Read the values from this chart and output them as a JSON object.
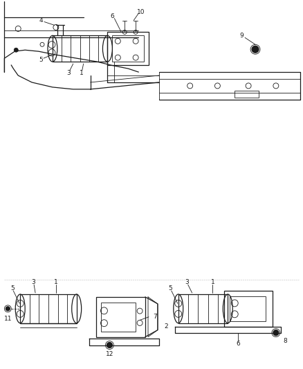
{
  "background_color": "#ffffff",
  "line_color": "#1a1a1a",
  "fig_width": 4.38,
  "fig_height": 5.33,
  "dpi": 100
}
